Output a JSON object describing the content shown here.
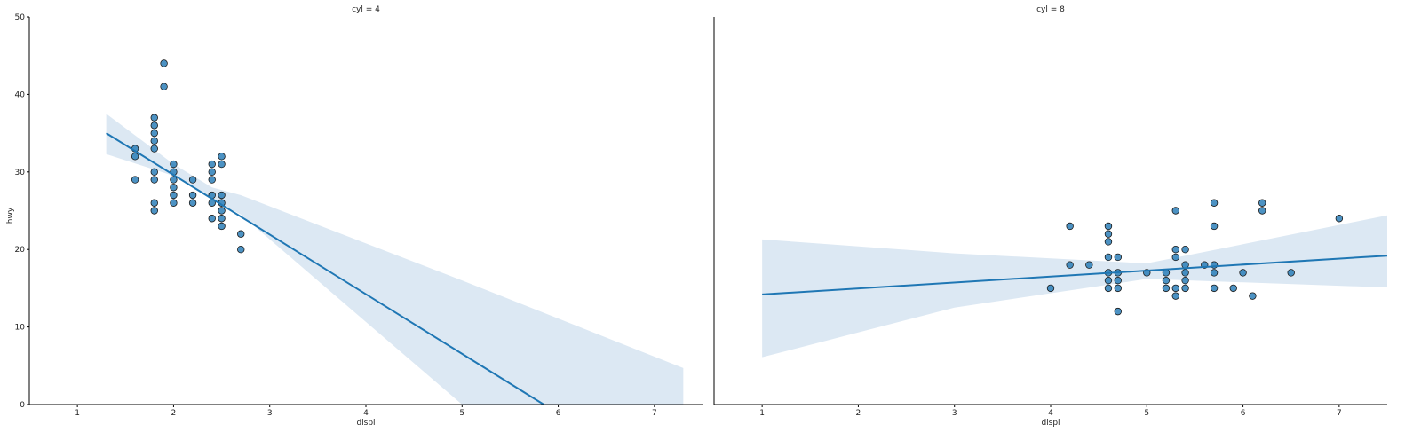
{
  "chart_data": {
    "type": "scatter",
    "xlabel": "displ",
    "ylabel": "hwy",
    "xlim": [
      0.5,
      7.5
    ],
    "ylim": [
      0,
      50
    ],
    "x_ticks": [
      1,
      2,
      3,
      4,
      5,
      6,
      7
    ],
    "y_ticks": [
      0,
      10,
      20,
      30,
      40,
      50
    ],
    "point_color": "#1f77b4",
    "band_color": "#dce8f3",
    "panels": [
      {
        "title": "cyl = 4",
        "fit": {
          "x": [
            1.3,
            5.85
          ],
          "y": [
            35.0,
            0.0
          ]
        },
        "ci_band": {
          "x": [
            1.3,
            2.0,
            2.4,
            2.7,
            5.0,
            7.3
          ],
          "upper": [
            37.5,
            31.0,
            28.0,
            27.0,
            16.0,
            4.7
          ],
          "lower": [
            32.3,
            29.5,
            26.5,
            24.5,
            0.0,
            0.0
          ]
        },
        "points": [
          [
            1.6,
            33
          ],
          [
            1.6,
            32
          ],
          [
            1.6,
            29
          ],
          [
            1.8,
            37
          ],
          [
            1.8,
            36
          ],
          [
            1.8,
            35
          ],
          [
            1.8,
            34
          ],
          [
            1.8,
            33
          ],
          [
            1.8,
            30
          ],
          [
            1.8,
            29
          ],
          [
            1.8,
            26
          ],
          [
            1.8,
            25
          ],
          [
            1.9,
            44
          ],
          [
            1.9,
            41
          ],
          [
            2.0,
            31
          ],
          [
            2.0,
            30
          ],
          [
            2.0,
            29
          ],
          [
            2.0,
            28
          ],
          [
            2.0,
            27
          ],
          [
            2.0,
            26
          ],
          [
            2.2,
            29
          ],
          [
            2.2,
            27
          ],
          [
            2.2,
            26
          ],
          [
            2.4,
            31
          ],
          [
            2.4,
            30
          ],
          [
            2.4,
            29
          ],
          [
            2.4,
            27
          ],
          [
            2.4,
            26
          ],
          [
            2.4,
            24
          ],
          [
            2.5,
            32
          ],
          [
            2.5,
            31
          ],
          [
            2.5,
            27
          ],
          [
            2.5,
            26
          ],
          [
            2.5,
            25
          ],
          [
            2.5,
            24
          ],
          [
            2.5,
            23
          ],
          [
            2.7,
            22
          ],
          [
            2.7,
            20
          ]
        ]
      },
      {
        "title": "cyl = 8",
        "fit": {
          "x": [
            1.0,
            7.5
          ],
          "y": [
            14.2,
            19.2
          ]
        },
        "ci_band": {
          "x": [
            1.0,
            3.0,
            5.0,
            7.5
          ],
          "upper": [
            21.3,
            19.5,
            18.2,
            24.4
          ],
          "lower": [
            6.1,
            12.5,
            16.2,
            15.1
          ]
        },
        "points": [
          [
            4.0,
            15
          ],
          [
            4.2,
            23
          ],
          [
            4.2,
            18
          ],
          [
            4.4,
            18
          ],
          [
            4.6,
            23
          ],
          [
            4.6,
            22
          ],
          [
            4.6,
            21
          ],
          [
            4.6,
            19
          ],
          [
            4.6,
            17
          ],
          [
            4.6,
            16
          ],
          [
            4.6,
            15
          ],
          [
            4.7,
            19
          ],
          [
            4.7,
            17
          ],
          [
            4.7,
            16
          ],
          [
            4.7,
            15
          ],
          [
            4.7,
            12
          ],
          [
            5.0,
            17
          ],
          [
            5.2,
            17
          ],
          [
            5.2,
            16
          ],
          [
            5.2,
            15
          ],
          [
            5.3,
            25
          ],
          [
            5.3,
            20
          ],
          [
            5.3,
            19
          ],
          [
            5.3,
            15
          ],
          [
            5.3,
            14
          ],
          [
            5.4,
            20
          ],
          [
            5.4,
            18
          ],
          [
            5.4,
            17
          ],
          [
            5.4,
            16
          ],
          [
            5.4,
            15
          ],
          [
            5.6,
            18
          ],
          [
            5.7,
            26
          ],
          [
            5.7,
            23
          ],
          [
            5.7,
            18
          ],
          [
            5.7,
            17
          ],
          [
            5.7,
            15
          ],
          [
            5.9,
            15
          ],
          [
            6.0,
            17
          ],
          [
            6.1,
            14
          ],
          [
            6.2,
            26
          ],
          [
            6.2,
            25
          ],
          [
            6.5,
            17
          ],
          [
            7.0,
            24
          ]
        ]
      }
    ]
  }
}
